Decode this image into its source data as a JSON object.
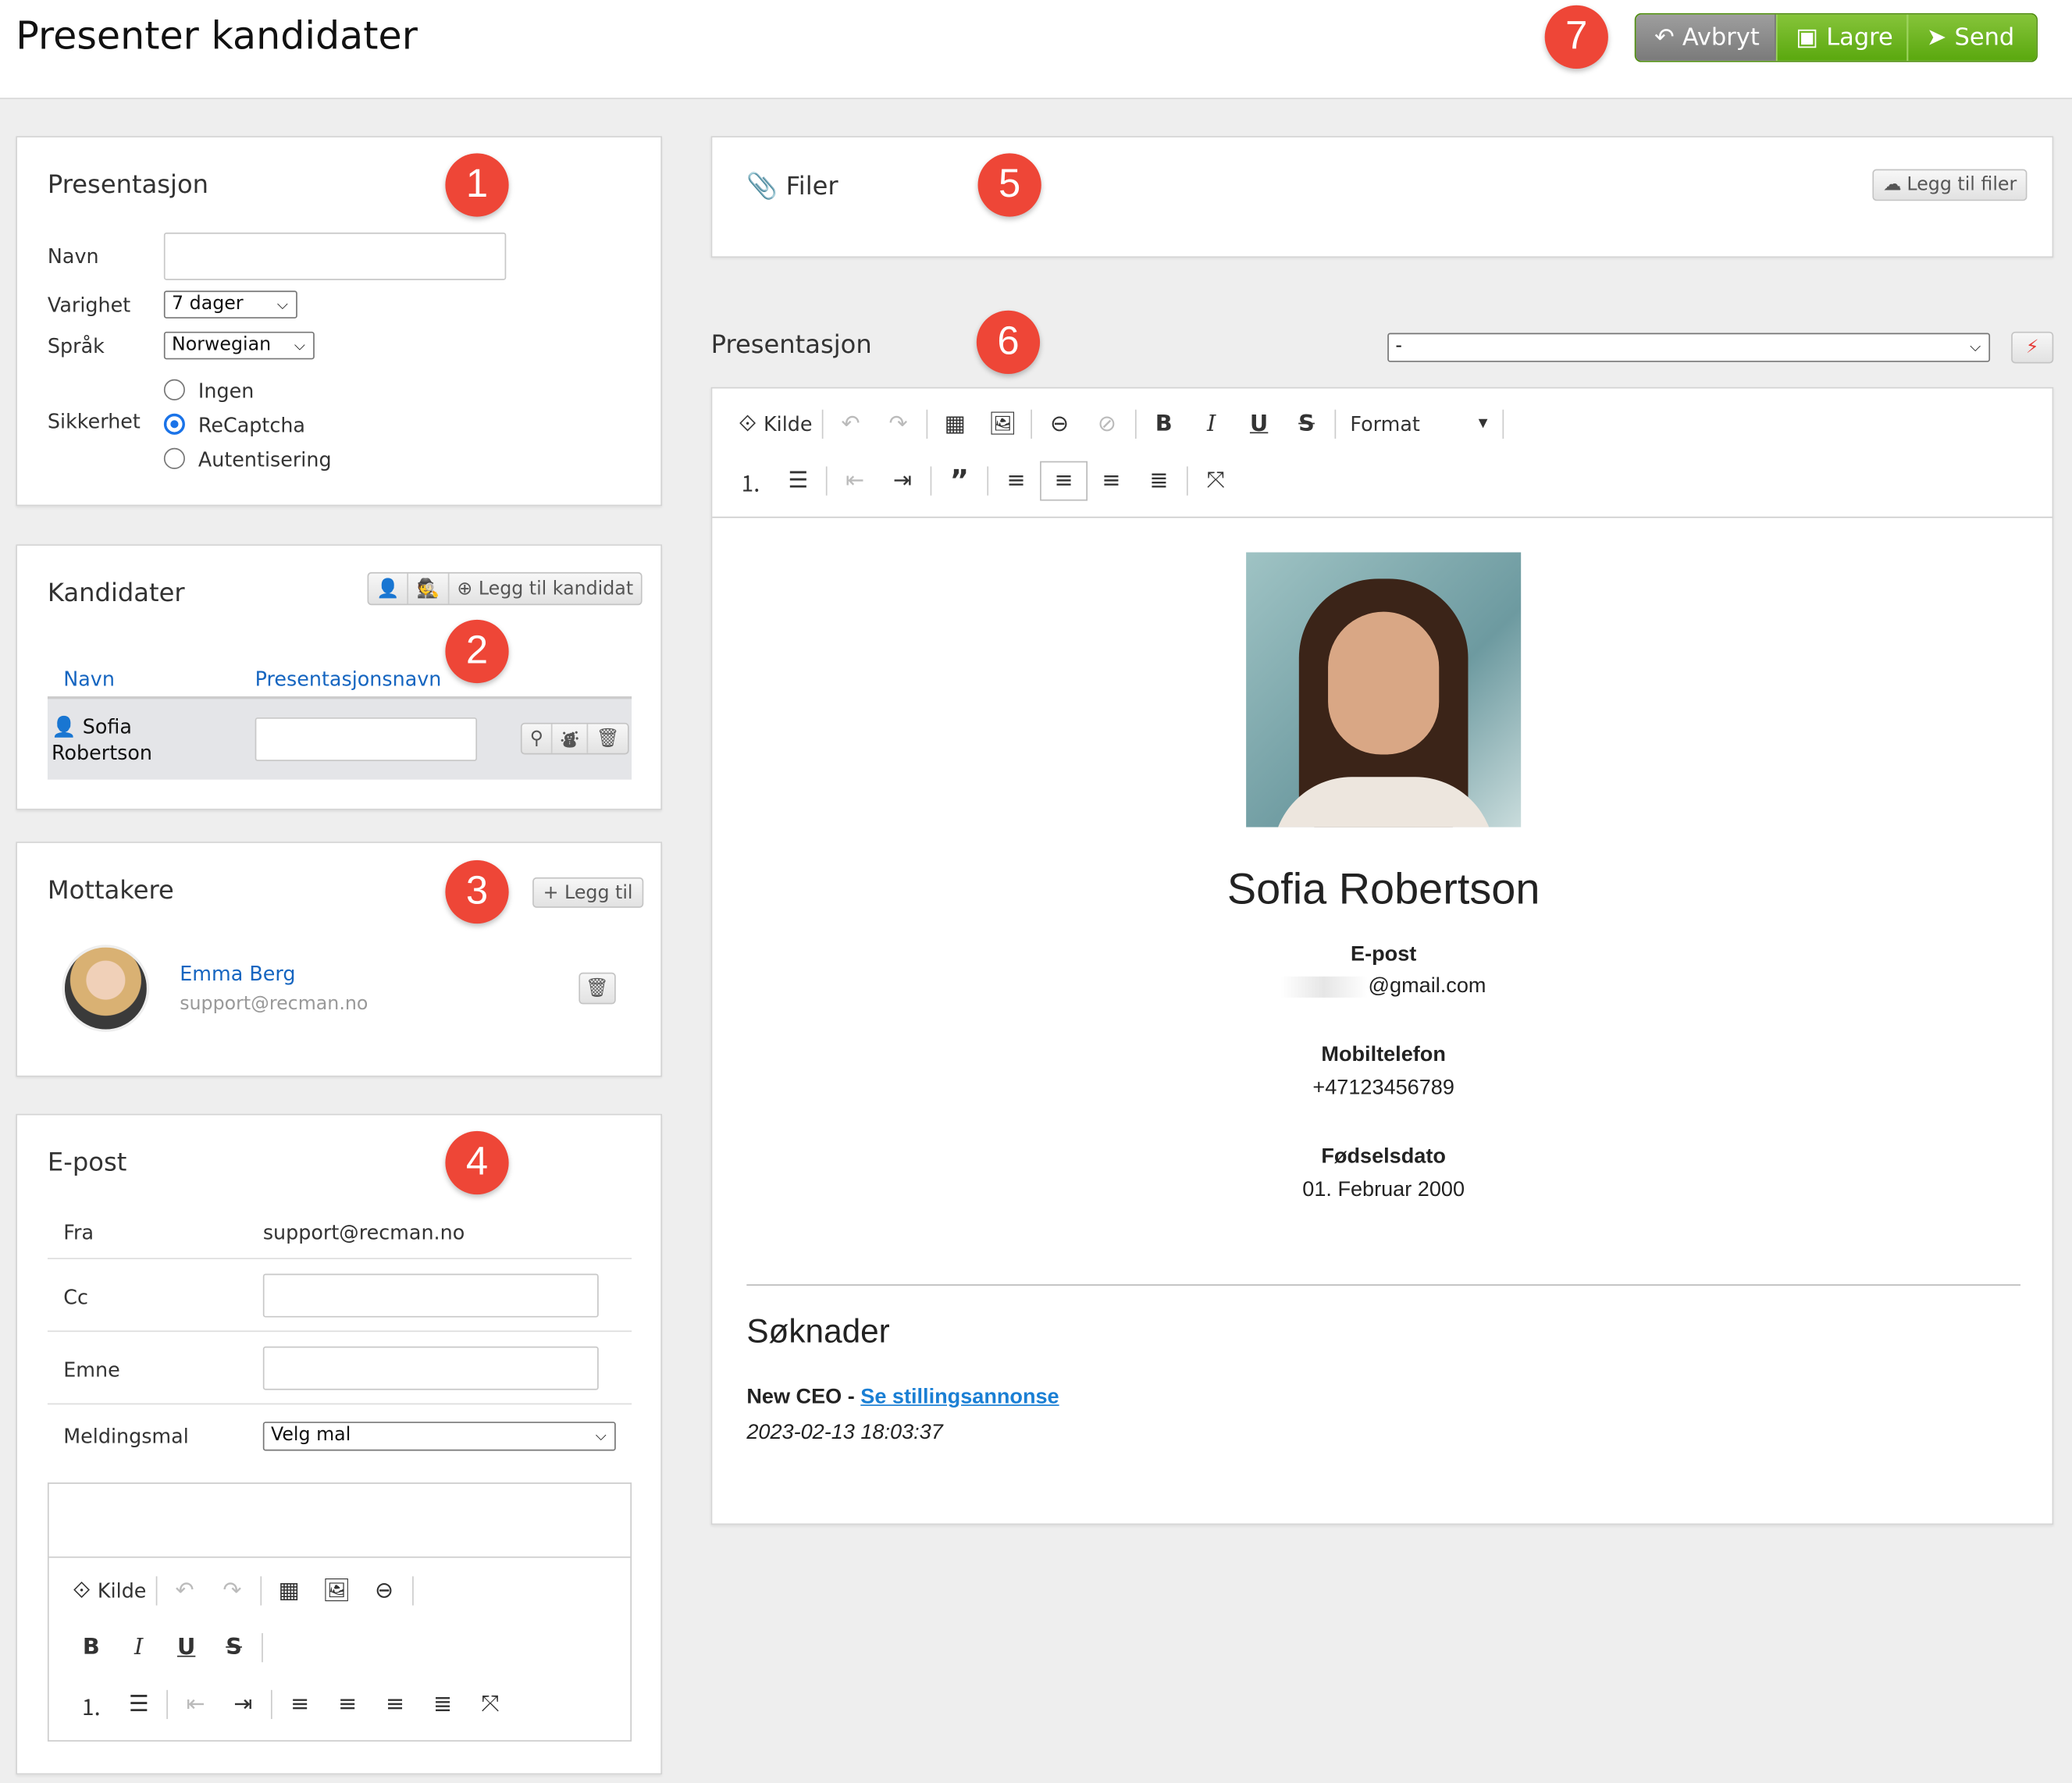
{
  "header": {
    "title": "Presenter kandidater",
    "badge": "7",
    "buttons": {
      "cancel": "Avbryt",
      "save": "Lagre",
      "send": "Send"
    }
  },
  "colors": {
    "badge": "#ee4637",
    "save": "#5aa80e",
    "cancel": "#888888",
    "link": "#1565c0"
  },
  "presentation_settings": {
    "badge": "1",
    "title": "Presentasjon",
    "name_label": "Navn",
    "name_value": "",
    "duration_label": "Varighet",
    "duration_value": "7 dager",
    "language_label": "Språk",
    "language_value": "Norwegian",
    "security_label": "Sikkerhet",
    "security_options": [
      "Ingen",
      "ReCaptcha",
      "Autentisering"
    ],
    "security_selected": "ReCaptcha"
  },
  "candidates": {
    "badge": "2",
    "title": "Kandidater",
    "add_label": "Legg til kandidat",
    "columns": [
      "Navn",
      "Presentasjonsnavn"
    ],
    "rows": [
      {
        "name": "Sofia Robertson",
        "presentation_name": ""
      }
    ]
  },
  "recipients": {
    "badge": "3",
    "title": "Mottakere",
    "add_label": "+ Legg til",
    "items": [
      {
        "name": "Emma Berg",
        "email": "support@recman.no"
      }
    ]
  },
  "email": {
    "badge": "4",
    "title": "E-post",
    "from_label": "Fra",
    "from_value": "support@recman.no",
    "cc_label": "Cc",
    "cc_value": "",
    "subject_label": "Emne",
    "subject_value": "",
    "template_label": "Meldingsmal",
    "template_value": "Velg mal",
    "editor": {
      "source_label": "Kilde"
    }
  },
  "files": {
    "badge": "5",
    "title": "Filer",
    "add_label": "Legg til filer"
  },
  "presentation": {
    "badge": "6",
    "title": "Presentasjon",
    "template_select": "-",
    "editor": {
      "source_label": "Kilde",
      "format_label": "Format"
    },
    "document": {
      "name": "Sofia Robertson",
      "email_label": "E-post",
      "email_value": "@gmail.com",
      "phone_label": "Mobiltelefon",
      "phone_value": "+47123456789",
      "birth_label": "Fødselsdato",
      "birth_value": "01. Februar 2000",
      "applications_title": "Søknader",
      "applications": [
        {
          "job": "New CEO",
          "separator": " - ",
          "link": "Se stillingsannonse",
          "date": "2023-02-13 18:03:37"
        }
      ]
    }
  }
}
